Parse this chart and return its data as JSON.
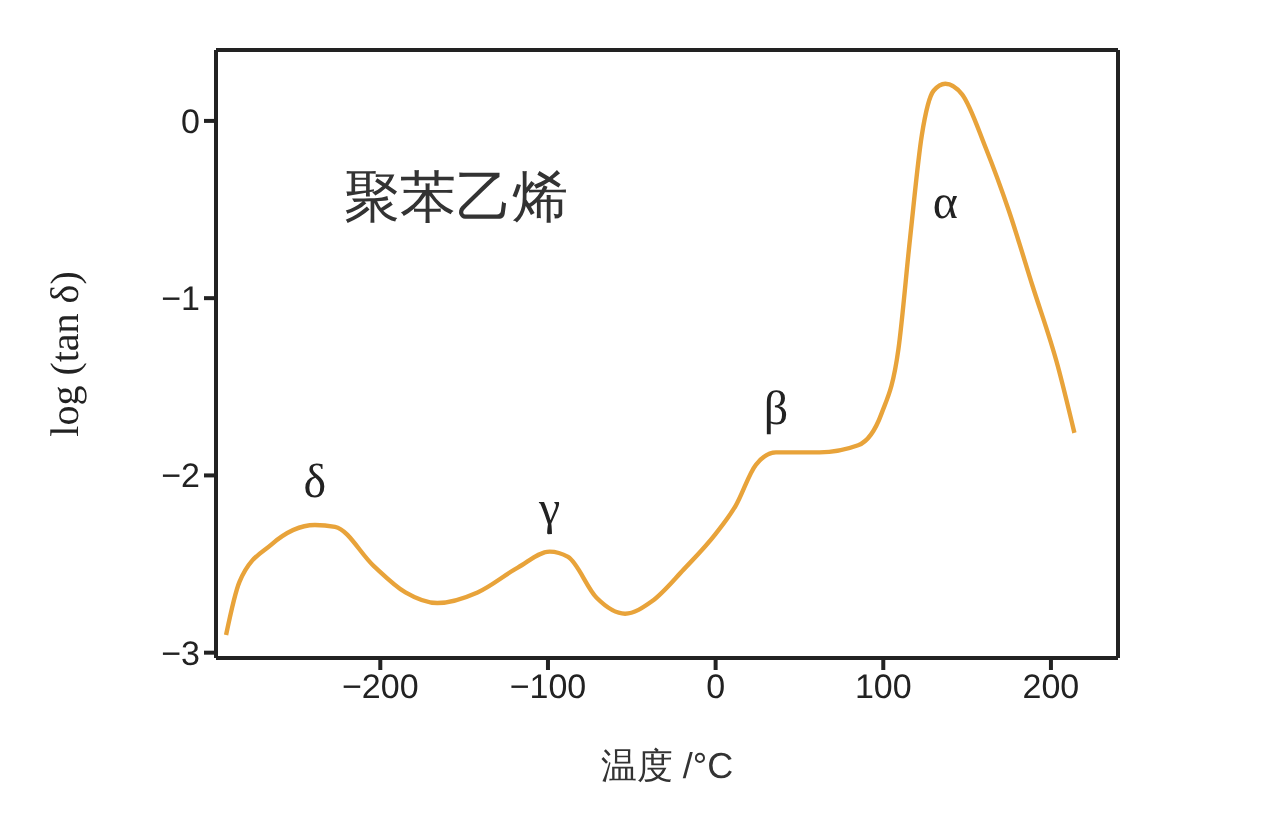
{
  "chart_data": {
    "type": "line",
    "title": "聚苯乙烯",
    "xlabel": "温度 /°C",
    "ylabel": "log (tan δ)",
    "x": [
      -292,
      -284,
      -265,
      -239,
      -227,
      -204,
      -185,
      -166,
      -142,
      -118,
      -99,
      -88,
      -71,
      -54,
      -38,
      -19,
      0,
      12,
      24,
      36,
      62,
      85,
      99,
      109,
      116,
      123,
      130,
      137,
      147,
      161,
      175,
      189,
      204,
      214
    ],
    "series": [
      {
        "color": "#e8a33a",
        "values": [
          -2.9,
          -2.6,
          -2.39,
          -2.28,
          -2.29,
          -2.51,
          -2.66,
          -2.72,
          -2.66,
          -2.52,
          -2.43,
          -2.46,
          -2.69,
          -2.78,
          -2.71,
          -2.53,
          -2.33,
          -2.17,
          -1.94,
          -1.87,
          -1.87,
          -1.83,
          -1.65,
          -1.29,
          -0.66,
          -0.08,
          0.17,
          0.21,
          0.15,
          -0.15,
          -0.51,
          -0.93,
          -1.38,
          -1.76
        ]
      }
    ],
    "annotations": [
      {
        "text": "δ",
        "x": -239,
        "y": -2.28
      },
      {
        "text": "γ",
        "x": -99,
        "y": -2.43
      },
      {
        "text": "β",
        "x": 36,
        "y": -1.87
      },
      {
        "text": "α",
        "x": 137,
        "y": 0.21
      }
    ],
    "xlim": [
      -298,
      240
    ],
    "ylim": [
      -3.03,
      0.4
    ],
    "xticks": [
      -200,
      -100,
      0,
      100,
      200
    ],
    "yticks": [
      -3,
      -2,
      -1,
      0
    ],
    "grid": false,
    "legend": false,
    "marker": "none",
    "line_style": "solid"
  }
}
